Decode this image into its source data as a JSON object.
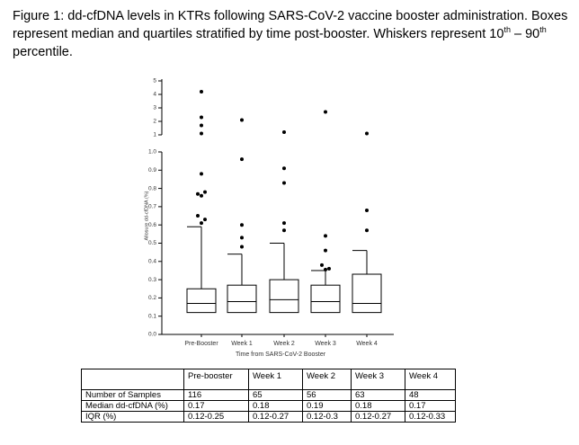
{
  "caption": [
    "Figure 1: dd-cfDNA levels in KTRs following SARS-CoV-2 vaccine booster administration. Boxes represent median and quartiles stratified by time post-booster. Whiskers represent 10",
    "th",
    " – 90",
    "th",
    " percentile."
  ],
  "chart_data": {
    "type": "box",
    "y_label": "Allosure dd-cfDNA (%)",
    "x_label": "Time from SARS-CoV-2 Booster",
    "categories": [
      "Pre-Booster",
      "Week 1",
      "Week 2",
      "Week 3",
      "Week 4"
    ],
    "q1": [
      0.12,
      0.12,
      0.12,
      0.12,
      0.12
    ],
    "median": [
      0.17,
      0.18,
      0.19,
      0.18,
      0.17
    ],
    "q3": [
      0.25,
      0.27,
      0.3,
      0.27,
      0.33
    ],
    "whisker_high": [
      0.59,
      0.44,
      0.5,
      0.35,
      0.46
    ],
    "outliers": [
      [
        0.61,
        0.63,
        0.65,
        0.76,
        0.77,
        0.78,
        0.88,
        1.1,
        1.7,
        2.3,
        4.2
      ],
      [
        0.48,
        0.53,
        0.6,
        0.96,
        2.1
      ],
      [
        0.57,
        0.61,
        0.83,
        0.91,
        1.2
      ],
      [
        0.355,
        0.36,
        0.38,
        0.46,
        0.54,
        2.7
      ],
      [
        0.57,
        0.68,
        1.1
      ]
    ],
    "ylim": [
      0,
      1
    ],
    "yticks": [
      {
        "value": 0,
        "label": "0.0"
      },
      0.1,
      0.2,
      0.3,
      0.4,
      0.5,
      0.6,
      0.7,
      0.8,
      0.9,
      {
        "value": 1,
        "label": "1.0"
      }
    ],
    "y_upper_lim": [
      1,
      5
    ],
    "y_upper_ticks": [
      1,
      2,
      3,
      4,
      5
    ]
  },
  "table": {
    "header": [
      "Pre-booster",
      "Week 1",
      "Week 2",
      "Week 3",
      "Week 4"
    ],
    "rows": [
      [
        "Number of Samples",
        "116",
        "65",
        "56",
        "63",
        "48"
      ],
      [
        "Median dd-cfDNA (%)",
        "0.17",
        "0.18",
        "0.19",
        "0.18",
        "0.17"
      ],
      [
        "IQR (%)",
        "0.12-0.25",
        "0.12-0.27",
        "0.12-0.3",
        "0.12-0.27",
        "0.12-0.33"
      ]
    ]
  }
}
